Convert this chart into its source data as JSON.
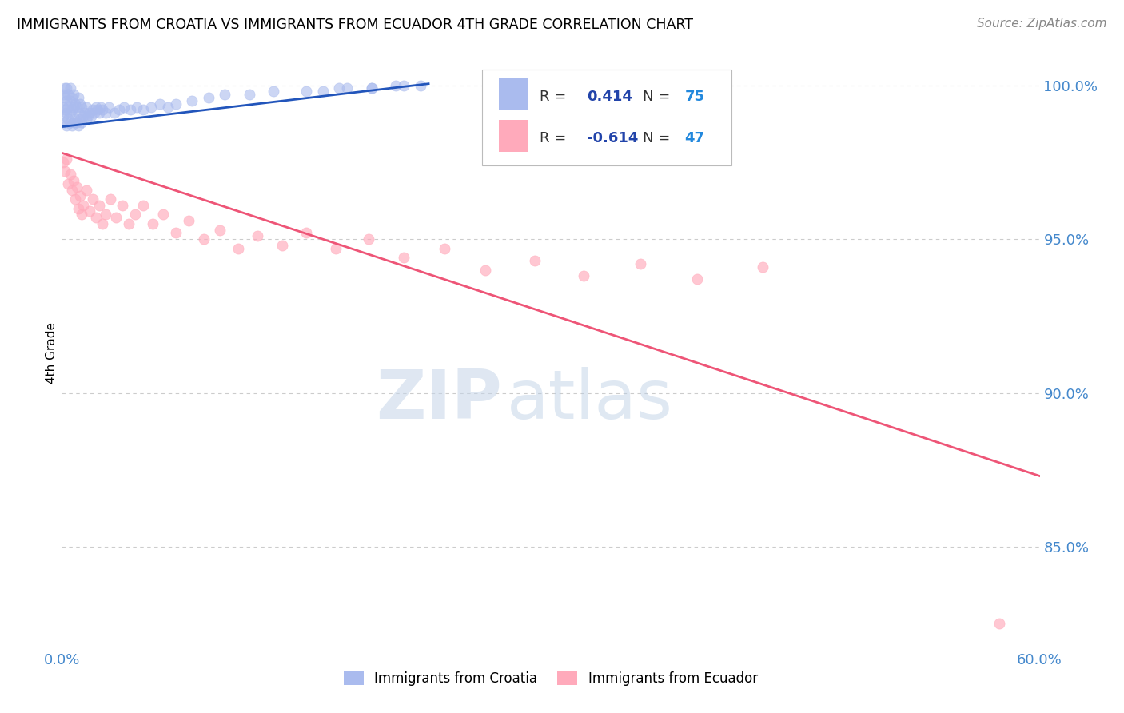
{
  "title": "IMMIGRANTS FROM CROATIA VS IMMIGRANTS FROM ECUADOR 4TH GRADE CORRELATION CHART",
  "source_text": "Source: ZipAtlas.com",
  "ylabel": "4th Grade",
  "xlim": [
    0.0,
    0.6
  ],
  "ylim": [
    0.818,
    1.008
  ],
  "xtick_labels": [
    "0.0%",
    "",
    "",
    "",
    "",
    "",
    "60.0%"
  ],
  "xtick_values": [
    0.0,
    0.1,
    0.2,
    0.3,
    0.4,
    0.5,
    0.6
  ],
  "ytick_labels": [
    "85.0%",
    "90.0%",
    "95.0%",
    "100.0%"
  ],
  "ytick_values": [
    0.85,
    0.9,
    0.95,
    1.0
  ],
  "grid_color": "#cccccc",
  "background_color": "#ffffff",
  "croatia_color": "#aabbee",
  "ecuador_color": "#ffaabb",
  "croatia_line_color": "#2255bb",
  "ecuador_line_color": "#ee5577",
  "r_croatia": 0.414,
  "n_croatia": 75,
  "r_ecuador": -0.614,
  "n_ecuador": 47,
  "legend_r_color": "#2244aa",
  "legend_n_color": "#2288dd",
  "watermark_zip": "ZIP",
  "watermark_atlas": "atlas",
  "croatia_scatter_x": [
    0.001,
    0.001,
    0.001,
    0.002,
    0.002,
    0.002,
    0.002,
    0.003,
    0.003,
    0.003,
    0.003,
    0.004,
    0.004,
    0.004,
    0.005,
    0.005,
    0.005,
    0.005,
    0.006,
    0.006,
    0.006,
    0.007,
    0.007,
    0.007,
    0.008,
    0.008,
    0.009,
    0.009,
    0.01,
    0.01,
    0.01,
    0.011,
    0.011,
    0.012,
    0.012,
    0.013,
    0.014,
    0.015,
    0.015,
    0.016,
    0.017,
    0.018,
    0.019,
    0.02,
    0.021,
    0.022,
    0.023,
    0.024,
    0.025,
    0.027,
    0.029,
    0.032,
    0.035,
    0.038,
    0.042,
    0.046,
    0.05,
    0.055,
    0.06,
    0.065,
    0.07,
    0.08,
    0.09,
    0.1,
    0.115,
    0.13,
    0.15,
    0.17,
    0.19,
    0.21,
    0.16,
    0.175,
    0.19,
    0.205,
    0.22
  ],
  "croatia_scatter_y": [
    0.99,
    0.993,
    0.997,
    0.988,
    0.992,
    0.996,
    0.999,
    0.987,
    0.991,
    0.995,
    0.999,
    0.989,
    0.993,
    0.997,
    0.988,
    0.991,
    0.995,
    0.999,
    0.987,
    0.992,
    0.996,
    0.988,
    0.993,
    0.997,
    0.989,
    0.994,
    0.988,
    0.993,
    0.987,
    0.991,
    0.996,
    0.989,
    0.994,
    0.988,
    0.993,
    0.99,
    0.991,
    0.989,
    0.993,
    0.99,
    0.991,
    0.99,
    0.992,
    0.991,
    0.993,
    0.992,
    0.991,
    0.993,
    0.992,
    0.991,
    0.993,
    0.991,
    0.992,
    0.993,
    0.992,
    0.993,
    0.992,
    0.993,
    0.994,
    0.993,
    0.994,
    0.995,
    0.996,
    0.997,
    0.997,
    0.998,
    0.998,
    0.999,
    0.999,
    1.0,
    0.998,
    0.999,
    0.999,
    1.0,
    1.0
  ],
  "ecuador_scatter_x": [
    0.001,
    0.002,
    0.003,
    0.004,
    0.005,
    0.006,
    0.007,
    0.008,
    0.009,
    0.01,
    0.011,
    0.012,
    0.013,
    0.015,
    0.017,
    0.019,
    0.021,
    0.023,
    0.025,
    0.027,
    0.03,
    0.033,
    0.037,
    0.041,
    0.045,
    0.05,
    0.056,
    0.062,
    0.07,
    0.078,
    0.087,
    0.097,
    0.108,
    0.12,
    0.135,
    0.15,
    0.168,
    0.188,
    0.21,
    0.235,
    0.26,
    0.29,
    0.32,
    0.355,
    0.39,
    0.43,
    0.575
  ],
  "ecuador_scatter_y": [
    0.975,
    0.972,
    0.976,
    0.968,
    0.971,
    0.966,
    0.969,
    0.963,
    0.967,
    0.96,
    0.964,
    0.958,
    0.961,
    0.966,
    0.959,
    0.963,
    0.957,
    0.961,
    0.955,
    0.958,
    0.963,
    0.957,
    0.961,
    0.955,
    0.958,
    0.961,
    0.955,
    0.958,
    0.952,
    0.956,
    0.95,
    0.953,
    0.947,
    0.951,
    0.948,
    0.952,
    0.947,
    0.95,
    0.944,
    0.947,
    0.94,
    0.943,
    0.938,
    0.942,
    0.937,
    0.941,
    0.825
  ],
  "croatia_trend_x": [
    0.0,
    0.225
  ],
  "croatia_trend_y": [
    0.9865,
    1.0005
  ],
  "ecuador_trend_x": [
    0.0,
    0.6
  ],
  "ecuador_trend_y": [
    0.978,
    0.873
  ]
}
